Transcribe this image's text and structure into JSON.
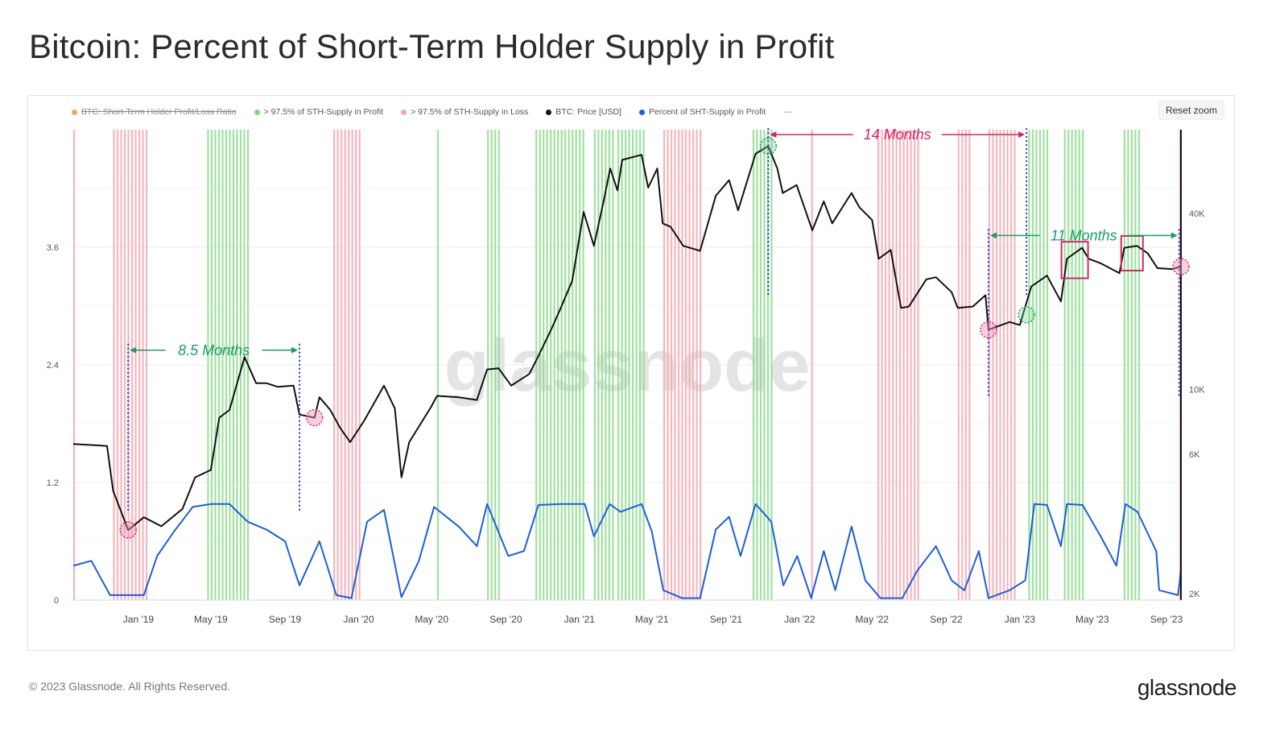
{
  "title": "Bitcoin: Percent of Short-Term Holder Supply in Profit",
  "reset_zoom_label": "Reset zoom",
  "watermark": "glassnode",
  "footer": {
    "copyright": "© 2023 Glassnode. All Rights Reserved.",
    "logo": "glassnode"
  },
  "legend": [
    {
      "label": "BTC: Short-Term Holder Profit/Loss Ratio",
      "color": "#f0a35e",
      "disabled": true
    },
    {
      "label": "> 97.5% of STH-Supply in Profit",
      "color": "#7fd67f",
      "disabled": false
    },
    {
      "label": "> 97.5% of STH-Supply in Loss",
      "color": "#f2a5ad",
      "disabled": false
    },
    {
      "label": "BTC: Price [USD]",
      "color": "#111111",
      "disabled": false
    },
    {
      "label": "Percent of SHT-Supply in Profit",
      "color": "#1d5fd6",
      "disabled": false
    }
  ],
  "legend_more": "---",
  "colors": {
    "price": "#111111",
    "percent": "#1d5fd6",
    "profit_band": "#8fdc8f",
    "loss_band": "#f4a9b1",
    "annotation_green": "#1a9c6a",
    "annotation_pink": "#d1276a",
    "vline": "#2233cc"
  },
  "chart_data": {
    "type": "line",
    "x_ticks": [
      "Jan '19",
      "May '19",
      "Sep '19",
      "Jan '20",
      "May '20",
      "Sep '20",
      "Jan '21",
      "May '21",
      "Sep '21",
      "Jan '22",
      "May '22",
      "Sep '22",
      "Jan '23",
      "May '23",
      "Sep '23"
    ],
    "x_range": [
      "2018-09-15",
      "2023-09-25"
    ],
    "y_left": {
      "ticks": [
        "0",
        "1.2",
        "2.4",
        "3.6"
      ],
      "range": [
        0,
        4.8
      ]
    },
    "y_right": {
      "ticks": [
        "2K",
        "6K",
        "10K",
        "40K"
      ],
      "scale": "log"
    },
    "series": [
      {
        "name": "BTC: Price [USD]",
        "axis": "right",
        "points": [
          [
            "2018-09-15",
            6500
          ],
          [
            "2018-10-15",
            6450
          ],
          [
            "2018-11-10",
            6400
          ],
          [
            "2018-11-20",
            4500
          ],
          [
            "2018-12-15",
            3300
          ],
          [
            "2019-01-10",
            3650
          ],
          [
            "2019-02-08",
            3400
          ],
          [
            "2019-03-15",
            3900
          ],
          [
            "2019-04-05",
            5000
          ],
          [
            "2019-05-01",
            5300
          ],
          [
            "2019-05-15",
            8000
          ],
          [
            "2019-06-01",
            8500
          ],
          [
            "2019-06-26",
            12900
          ],
          [
            "2019-07-15",
            10500
          ],
          [
            "2019-08-01",
            10500
          ],
          [
            "2019-08-20",
            10200
          ],
          [
            "2019-09-15",
            10300
          ],
          [
            "2019-09-25",
            8200
          ],
          [
            "2019-10-20",
            8000
          ],
          [
            "2019-10-28",
            9400
          ],
          [
            "2019-11-15",
            8500
          ],
          [
            "2019-12-01",
            7400
          ],
          [
            "2019-12-18",
            6600
          ],
          [
            "2020-01-10",
            7800
          ],
          [
            "2020-02-12",
            10300
          ],
          [
            "2020-03-01",
            8600
          ],
          [
            "2020-03-12",
            5000
          ],
          [
            "2020-03-25",
            6600
          ],
          [
            "2020-04-30",
            8700
          ],
          [
            "2020-05-10",
            9500
          ],
          [
            "2020-06-15",
            9400
          ],
          [
            "2020-07-15",
            9200
          ],
          [
            "2020-08-01",
            11700
          ],
          [
            "2020-08-20",
            11800
          ],
          [
            "2020-09-10",
            10300
          ],
          [
            "2020-10-10",
            11300
          ],
          [
            "2020-10-25",
            13000
          ],
          [
            "2020-11-15",
            16000
          ],
          [
            "2020-12-01",
            19000
          ],
          [
            "2020-12-20",
            23500
          ],
          [
            "2021-01-08",
            40500
          ],
          [
            "2021-01-25",
            31000
          ],
          [
            "2021-02-10",
            44000
          ],
          [
            "2021-02-21",
            57000
          ],
          [
            "2021-03-05",
            48000
          ],
          [
            "2021-03-13",
            61000
          ],
          [
            "2021-04-14",
            63500
          ],
          [
            "2021-04-25",
            49000
          ],
          [
            "2021-05-10",
            57000
          ],
          [
            "2021-05-19",
            37000
          ],
          [
            "2021-06-01",
            36000
          ],
          [
            "2021-06-22",
            31000
          ],
          [
            "2021-07-20",
            29800
          ],
          [
            "2021-08-15",
            46000
          ],
          [
            "2021-09-06",
            52000
          ],
          [
            "2021-09-21",
            41000
          ],
          [
            "2021-10-20",
            64000
          ],
          [
            "2021-11-10",
            68000
          ],
          [
            "2021-11-25",
            57000
          ],
          [
            "2021-12-04",
            47000
          ],
          [
            "2021-12-27",
            50000
          ],
          [
            "2022-01-22",
            35000
          ],
          [
            "2022-02-10",
            44000
          ],
          [
            "2022-02-24",
            37000
          ],
          [
            "2022-03-28",
            47000
          ],
          [
            "2022-04-10",
            42000
          ],
          [
            "2022-05-01",
            38000
          ],
          [
            "2022-05-12",
            28000
          ],
          [
            "2022-06-01",
            30000
          ],
          [
            "2022-06-18",
            19000
          ],
          [
            "2022-07-01",
            19200
          ],
          [
            "2022-07-30",
            23800
          ],
          [
            "2022-08-15",
            24200
          ],
          [
            "2022-09-10",
            21500
          ],
          [
            "2022-09-20",
            19000
          ],
          [
            "2022-10-15",
            19200
          ],
          [
            "2022-11-05",
            21000
          ],
          [
            "2022-11-10",
            16000
          ],
          [
            "2022-12-15",
            17000
          ],
          [
            "2023-01-01",
            16600
          ],
          [
            "2023-01-20",
            22500
          ],
          [
            "2023-02-15",
            24500
          ],
          [
            "2023-03-10",
            20000
          ],
          [
            "2023-03-20",
            28000
          ],
          [
            "2023-04-14",
            30500
          ],
          [
            "2023-04-25",
            28000
          ],
          [
            "2023-05-15",
            27000
          ],
          [
            "2023-06-15",
            25000
          ],
          [
            "2023-06-23",
            30500
          ],
          [
            "2023-07-14",
            31000
          ],
          [
            "2023-08-01",
            29200
          ],
          [
            "2023-08-17",
            26000
          ],
          [
            "2023-09-10",
            25800
          ],
          [
            "2023-09-25",
            26300
          ]
        ]
      },
      {
        "name": "Percent of SHT-Supply in Profit",
        "axis": "left",
        "points": [
          [
            "2018-09-15",
            0.35
          ],
          [
            "2018-10-15",
            0.4
          ],
          [
            "2018-11-15",
            0.05
          ],
          [
            "2018-12-15",
            0.05
          ],
          [
            "2019-01-10",
            0.05
          ],
          [
            "2019-02-01",
            0.45
          ],
          [
            "2019-03-01",
            0.7
          ],
          [
            "2019-04-01",
            0.95
          ],
          [
            "2019-05-01",
            0.98
          ],
          [
            "2019-06-01",
            0.98
          ],
          [
            "2019-07-01",
            0.8
          ],
          [
            "2019-08-01",
            0.72
          ],
          [
            "2019-09-01",
            0.6
          ],
          [
            "2019-09-25",
            0.15
          ],
          [
            "2019-10-28",
            0.6
          ],
          [
            "2019-11-25",
            0.05
          ],
          [
            "2019-12-20",
            0.02
          ],
          [
            "2020-01-15",
            0.8
          ],
          [
            "2020-02-12",
            0.92
          ],
          [
            "2020-03-12",
            0.03
          ],
          [
            "2020-04-10",
            0.4
          ],
          [
            "2020-05-05",
            0.95
          ],
          [
            "2020-06-15",
            0.75
          ],
          [
            "2020-07-15",
            0.55
          ],
          [
            "2020-08-01",
            0.98
          ],
          [
            "2020-09-05",
            0.45
          ],
          [
            "2020-10-01",
            0.5
          ],
          [
            "2020-10-25",
            0.97
          ],
          [
            "2020-12-01",
            0.98
          ],
          [
            "2021-01-10",
            0.98
          ],
          [
            "2021-01-25",
            0.65
          ],
          [
            "2021-02-20",
            0.98
          ],
          [
            "2021-03-10",
            0.9
          ],
          [
            "2021-04-14",
            0.98
          ],
          [
            "2021-05-01",
            0.7
          ],
          [
            "2021-05-20",
            0.1
          ],
          [
            "2021-06-20",
            0.02
          ],
          [
            "2021-07-20",
            0.02
          ],
          [
            "2021-08-15",
            0.72
          ],
          [
            "2021-09-06",
            0.85
          ],
          [
            "2021-09-25",
            0.45
          ],
          [
            "2021-10-20",
            0.98
          ],
          [
            "2021-11-15",
            0.8
          ],
          [
            "2021-12-05",
            0.15
          ],
          [
            "2021-12-28",
            0.45
          ],
          [
            "2022-01-20",
            0.02
          ],
          [
            "2022-02-10",
            0.5
          ],
          [
            "2022-03-01",
            0.1
          ],
          [
            "2022-03-28",
            0.75
          ],
          [
            "2022-04-20",
            0.2
          ],
          [
            "2022-05-15",
            0.02
          ],
          [
            "2022-06-20",
            0.02
          ],
          [
            "2022-07-15",
            0.3
          ],
          [
            "2022-08-15",
            0.55
          ],
          [
            "2022-09-10",
            0.2
          ],
          [
            "2022-10-01",
            0.1
          ],
          [
            "2022-10-25",
            0.5
          ],
          [
            "2022-11-10",
            0.02
          ],
          [
            "2022-12-15",
            0.1
          ],
          [
            "2023-01-10",
            0.2
          ],
          [
            "2023-01-25",
            0.98
          ],
          [
            "2023-02-15",
            0.97
          ],
          [
            "2023-03-10",
            0.55
          ],
          [
            "2023-03-20",
            0.98
          ],
          [
            "2023-04-15",
            0.97
          ],
          [
            "2023-05-15",
            0.65
          ],
          [
            "2023-06-10",
            0.35
          ],
          [
            "2023-06-25",
            0.98
          ],
          [
            "2023-07-15",
            0.9
          ],
          [
            "2023-08-15",
            0.5
          ],
          [
            "2023-08-20",
            0.1
          ],
          [
            "2023-09-20",
            0.05
          ],
          [
            "2023-09-25",
            0.3
          ]
        ]
      }
    ],
    "profit_bands": [
      [
        "2019-04-25",
        "2019-07-01"
      ],
      [
        "2020-05-10",
        "2020-05-15"
      ],
      [
        "2020-08-01",
        "2020-08-20"
      ],
      [
        "2020-10-20",
        "2021-01-12"
      ],
      [
        "2021-01-25",
        "2021-03-01"
      ],
      [
        "2021-03-05",
        "2021-04-18"
      ],
      [
        "2021-10-15",
        "2021-11-15"
      ],
      [
        "2023-01-15",
        "2023-02-20"
      ],
      [
        "2023-03-15",
        "2023-04-20"
      ],
      [
        "2023-06-22",
        "2023-07-20"
      ]
    ],
    "loss_bands": [
      [
        "2018-09-15",
        "2018-09-18"
      ],
      [
        "2018-11-20",
        "2019-01-15"
      ],
      [
        "2019-11-20",
        "2020-01-05"
      ],
      [
        "2021-05-20",
        "2021-07-25"
      ],
      [
        "2022-01-20",
        "2022-01-25"
      ],
      [
        "2022-05-10",
        "2022-07-20"
      ],
      [
        "2022-09-20",
        "2022-10-10"
      ],
      [
        "2022-11-10",
        "2022-12-25"
      ],
      [
        "2023-09-22",
        "2023-09-25"
      ]
    ],
    "annotations": [
      {
        "label": "8.5 Months",
        "from": "2018-12-15",
        "to": "2019-09-25",
        "level": 2.55,
        "color": "green"
      },
      {
        "label": "14 Months",
        "from": "2021-11-10",
        "to": "2023-01-12",
        "level": 4.75,
        "color": "pink"
      },
      {
        "label": "11 Months",
        "from": "2022-11-10",
        "to": "2023-09-22",
        "level": 3.72,
        "color": "green"
      }
    ],
    "markers": [
      {
        "date": "2018-12-15",
        "price": 3300,
        "color": "pink"
      },
      {
        "date": "2019-10-20",
        "price": 8000,
        "color": "pink"
      },
      {
        "date": "2021-11-10",
        "price": 68000,
        "color": "green"
      },
      {
        "date": "2022-11-10",
        "price": 16000,
        "color": "pink"
      },
      {
        "date": "2023-01-12",
        "price": 18000,
        "color": "green"
      },
      {
        "date": "2023-09-25",
        "price": 26300,
        "color": "pink"
      }
    ],
    "highlight_boxes": [
      {
        "from": "2023-03-15",
        "to": "2023-04-20",
        "price_low": 24000,
        "price_high": 32000
      },
      {
        "from": "2023-06-22",
        "to": "2023-07-20",
        "price_low": 25500,
        "price_high": 33500
      }
    ]
  }
}
